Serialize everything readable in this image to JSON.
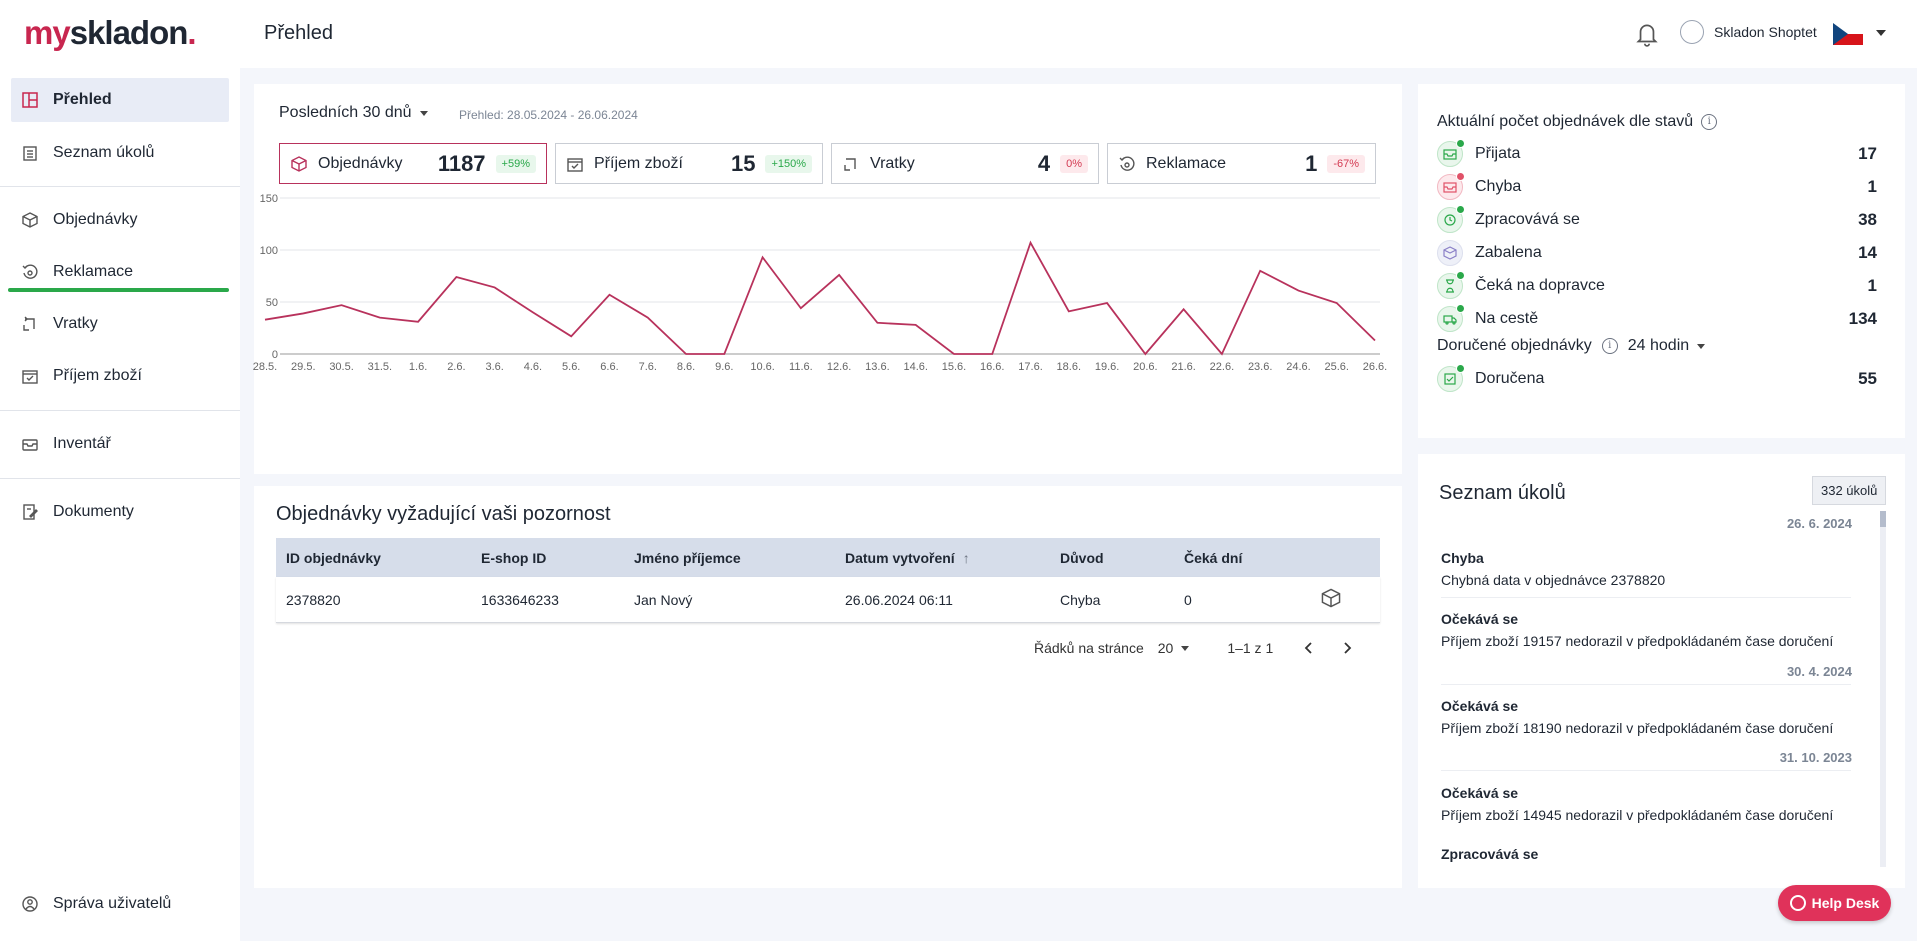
{
  "app": {
    "logo_my": "my",
    "logo_rest": "skladon",
    "logo_dot": ".",
    "page_title": "Přehled",
    "user_name": "Skladon Shoptet"
  },
  "sidebar": {
    "items": [
      {
        "label": "Přehled"
      },
      {
        "label": "Seznam úkolů"
      },
      {
        "label": "Objednávky"
      },
      {
        "label": "Reklamace"
      },
      {
        "label": "Vratky"
      },
      {
        "label": "Příjem zboží"
      },
      {
        "label": "Inventář"
      },
      {
        "label": "Dokumenty"
      },
      {
        "label": "Správa uživatelů"
      }
    ]
  },
  "overview": {
    "range_label": "Posledních 30 dnů",
    "range_text": "Přehled: 28.05.2024 - 26.06.2024",
    "stats": [
      {
        "label": "Objednávky",
        "value": "1187",
        "change": "+59%"
      },
      {
        "label": "Příjem zboží",
        "value": "15",
        "change": "+150%"
      },
      {
        "label": "Vratky",
        "value": "4",
        "change": "0%"
      },
      {
        "label": "Reklamace",
        "value": "1",
        "change": "-67%"
      }
    ]
  },
  "chart_data": {
    "type": "line",
    "x": [
      "28.5.",
      "29.5.",
      "30.5.",
      "31.5.",
      "1.6.",
      "2.6.",
      "3.6.",
      "4.6.",
      "5.6.",
      "6.6.",
      "7.6.",
      "8.6.",
      "9.6.",
      "10.6.",
      "11.6.",
      "12.6.",
      "13.6.",
      "14.6.",
      "15.6.",
      "16.6.",
      "17.6.",
      "18.6.",
      "19.6.",
      "20.6.",
      "21.6.",
      "22.6.",
      "23.6.",
      "24.6.",
      "25.6.",
      "26.6."
    ],
    "series": [
      {
        "values": [
          33,
          39,
          47,
          35,
          31,
          74,
          64,
          40,
          17,
          57,
          35,
          0,
          0,
          93,
          44,
          76,
          30,
          28,
          0,
          0,
          107,
          41,
          49,
          0,
          43,
          0,
          80,
          61,
          49,
          13
        ]
      }
    ],
    "yticks": [
      "0",
      "50",
      "100",
      "150"
    ],
    "ylim": [
      0,
      150
    ],
    "grid": true,
    "color": "#b8325c"
  },
  "orders": {
    "title": "Objednávky vyžadující vaši pozornost",
    "columns": [
      "ID objednávky",
      "E-shop ID",
      "Jméno příjemce",
      "Datum vytvoření",
      "Důvod",
      "Čeká dní"
    ],
    "rows": [
      {
        "id": "2378820",
        "eshop_id": "1633646233",
        "name": "Jan Nový",
        "date": "26.06.2024 06:11",
        "reason": "Chyba",
        "days": "0"
      }
    ],
    "rows_per_page_label": "Řádků na stránce",
    "rows_per_page": "20",
    "range": "1–1 z 1"
  },
  "statuses": {
    "title": "Aktuální počet objednávek dle stavů",
    "items": [
      {
        "label": "Přijata",
        "count": "17"
      },
      {
        "label": "Chyba",
        "count": "1"
      },
      {
        "label": "Zpracovává se",
        "count": "38"
      },
      {
        "label": "Zabalena",
        "count": "14"
      },
      {
        "label": "Čeká na dopravce",
        "count": "1"
      },
      {
        "label": "Na cestě",
        "count": "134"
      }
    ],
    "delivered_title": "Doručené objednávky",
    "delivered_period": "24 hodin",
    "delivered": {
      "label": "Doručena",
      "count": "55"
    }
  },
  "tasks": {
    "title": "Seznam úkolů",
    "count": "332 úkolů",
    "items": [
      {
        "date": "26. 6. 2024",
        "title": "Chyba",
        "text": "Chybná data v objednávce 2378820"
      },
      {
        "date": "",
        "title": "Očekává se",
        "text": "Příjem zboží 19157 nedorazil v předpokládaném čase doručení"
      },
      {
        "date": "30. 4. 2024",
        "title": "Očekává se",
        "text": "Příjem zboží 18190 nedorazil v předpokládaném čase doručení"
      },
      {
        "date": "31. 10. 2023",
        "title": "Očekává se",
        "text": "Příjem zboží 14945 nedorazil v předpokládaném čase doručení"
      },
      {
        "date": "",
        "title": "Zpracovává se",
        "text": ""
      }
    ]
  },
  "helpdesk": {
    "label": "Help Desk"
  }
}
